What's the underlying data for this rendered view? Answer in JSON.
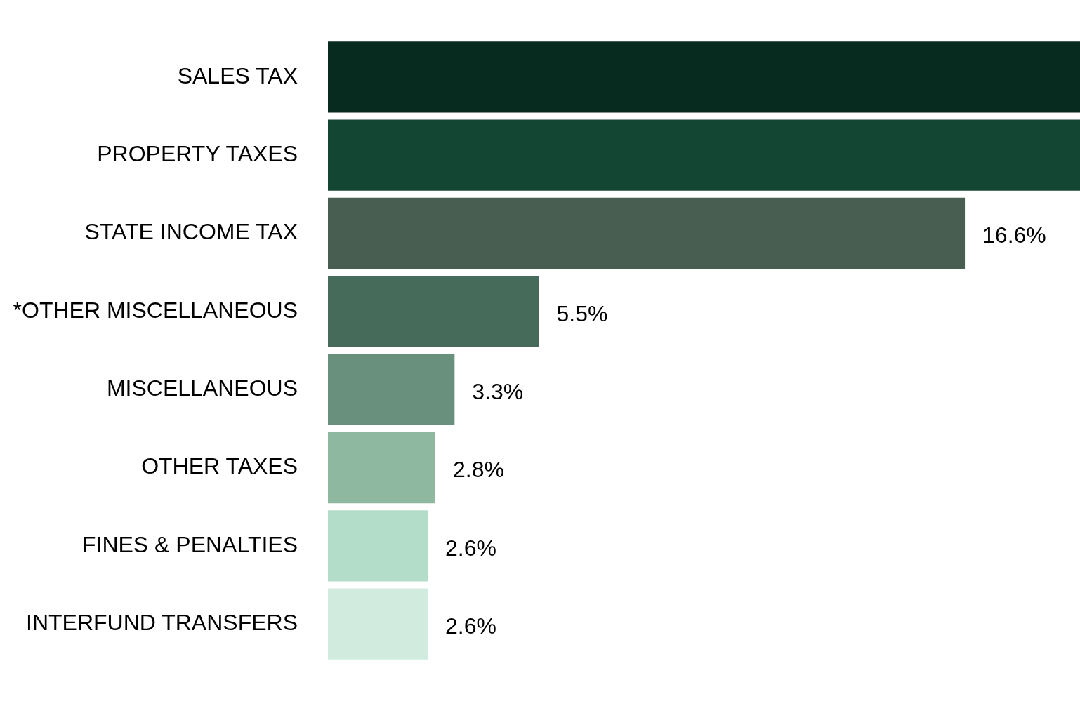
{
  "chart_data": {
    "type": "bar",
    "orientation": "horizontal",
    "categories": [
      "SALES TAX",
      "PROPERTY TAXES",
      "STATE INCOME TAX",
      "*OTHER MISCELLANEOUS",
      "MISCELLANEOUS",
      "OTHER TAXES",
      "FINES & PENALTIES",
      "INTERFUND TRANSFERS"
    ],
    "values": [
      19.6,
      19.6,
      16.6,
      5.5,
      3.3,
      2.8,
      2.6,
      2.6
    ],
    "value_labels": [
      null,
      null,
      "16.6%",
      "5.5%",
      "3.3%",
      "2.8%",
      "2.6%",
      "2.6%"
    ],
    "colors": [
      "#072b1f",
      "#134733",
      "#475e51",
      "#476b5a",
      "#68907c",
      "#8fb8a0",
      "#b4ddc9",
      "#d2ebdf"
    ],
    "xlim": [
      0,
      19.6
    ],
    "tick_labels": "y",
    "grid": false,
    "legend": false
  }
}
